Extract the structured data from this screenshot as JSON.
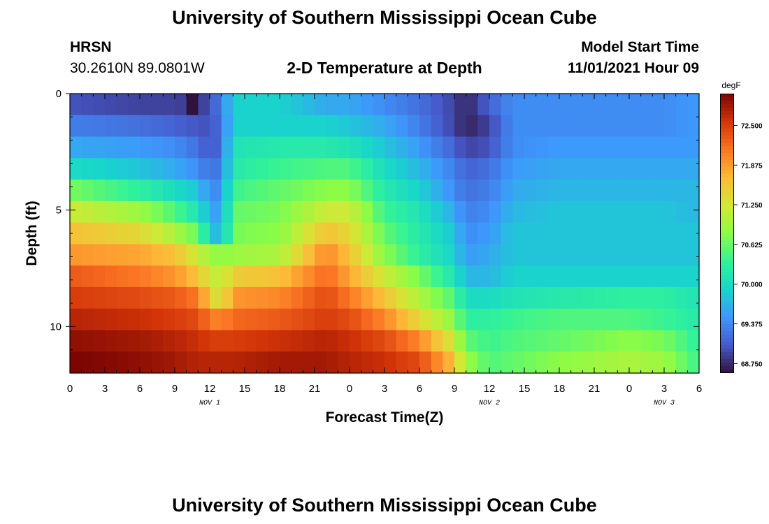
{
  "page": {
    "title": "University of Southern Mississippi Ocean Cube",
    "title_repeat": "University of Southern Mississippi Ocean Cube",
    "station": "HRSN",
    "coords": "30.2610N  89.0801W",
    "subtitle": "2-D Temperature at Depth",
    "model_start_label": "Model Start Time",
    "model_start_value": "11/01/2021 Hour 09"
  },
  "chart_data": {
    "type": "heatmap",
    "title": "2-D Temperature at Depth",
    "xlabel": "Forecast Time(Z)",
    "ylabel": "Depth (ft)",
    "x_hours": [
      0,
      3,
      6,
      9,
      12,
      15,
      18,
      21,
      24,
      27,
      30,
      33,
      36,
      39,
      42,
      45,
      48,
      51,
      54
    ],
    "x_tick_labels": [
      "0",
      "3",
      "6",
      "9",
      "12",
      "15",
      "18",
      "21",
      "0",
      "3",
      "6",
      "9",
      "12",
      "15",
      "18",
      "21",
      "0",
      "3",
      "6"
    ],
    "day_labels": [
      {
        "hour": 12,
        "label": "NOV 1"
      },
      {
        "hour": 36,
        "label": "NOV 2"
      },
      {
        "hour": 51,
        "label": "NOV 3"
      }
    ],
    "y_ticks": [
      0,
      5,
      10
    ],
    "ylim": [
      0,
      12
    ],
    "xlim": [
      0,
      54
    ],
    "colorbar": {
      "unit": "degF",
      "min": 68.6,
      "max": 73.0,
      "tick_values": [
        72.5,
        71.875,
        71.25,
        70.625,
        70.0,
        69.375,
        68.75
      ],
      "tick_labels": [
        "72.500",
        "71.875",
        "71.250",
        "70.625",
        "70.000",
        "69.375",
        "68.750"
      ]
    },
    "row_depths_ft": [
      0,
      1,
      2,
      3,
      4,
      5,
      6,
      7,
      8,
      9,
      10,
      11,
      12
    ],
    "key_hours": [
      0,
      6,
      9,
      11,
      12,
      13,
      14,
      18,
      22,
      24,
      27,
      30,
      33,
      34,
      36,
      38,
      42,
      48,
      51,
      54
    ],
    "grid_values_degF": [
      [
        69.0,
        68.9,
        68.9,
        68.8,
        69.0,
        69.3,
        69.9,
        69.9,
        69.6,
        69.6,
        69.4,
        69.2,
        68.9,
        68.7,
        69.1,
        69.4,
        69.4,
        69.4,
        69.4,
        69.5
      ],
      [
        69.3,
        69.2,
        69.1,
        69.0,
        69.0,
        69.2,
        69.9,
        69.9,
        69.9,
        69.8,
        69.6,
        69.3,
        68.9,
        68.7,
        68.9,
        69.4,
        69.4,
        69.4,
        69.4,
        69.5
      ],
      [
        69.6,
        69.5,
        69.4,
        69.2,
        69.0,
        69.2,
        70.1,
        70.2,
        70.2,
        70.1,
        69.8,
        69.5,
        69.1,
        68.9,
        69.0,
        69.4,
        69.5,
        69.5,
        69.5,
        69.5
      ],
      [
        70.0,
        69.8,
        69.6,
        69.4,
        69.2,
        69.3,
        70.2,
        70.4,
        70.5,
        70.5,
        70.0,
        69.7,
        69.3,
        69.1,
        69.2,
        69.5,
        69.6,
        69.6,
        69.6,
        69.6
      ],
      [
        70.7,
        70.3,
        70.0,
        69.8,
        69.4,
        69.4,
        70.4,
        70.6,
        70.8,
        70.8,
        70.2,
        69.9,
        69.4,
        69.2,
        69.3,
        69.6,
        69.7,
        69.7,
        69.7,
        69.7
      ],
      [
        71.2,
        70.9,
        70.5,
        70.1,
        69.6,
        69.5,
        70.6,
        70.7,
        71.2,
        71.2,
        70.4,
        70.1,
        69.6,
        69.3,
        69.4,
        69.7,
        69.8,
        69.8,
        69.8,
        69.7
      ],
      [
        71.6,
        71.4,
        71.0,
        70.6,
        69.9,
        69.6,
        70.7,
        70.8,
        71.6,
        71.4,
        70.6,
        70.2,
        69.8,
        69.4,
        69.5,
        69.8,
        69.8,
        69.8,
        69.8,
        69.8
      ],
      [
        71.9,
        71.8,
        71.6,
        71.2,
        70.9,
        70.8,
        70.9,
        71.0,
        72.0,
        71.6,
        70.8,
        70.3,
        69.9,
        69.5,
        69.6,
        69.8,
        69.8,
        69.8,
        69.8,
        69.8
      ],
      [
        72.3,
        72.1,
        71.9,
        71.6,
        71.2,
        71.1,
        71.5,
        71.6,
        72.2,
        71.8,
        71.2,
        70.7,
        70.1,
        69.7,
        69.7,
        69.9,
        69.9,
        69.9,
        69.9,
        69.9
      ],
      [
        72.5,
        72.4,
        72.3,
        72.1,
        71.5,
        71.2,
        71.9,
        72.0,
        72.4,
        72.1,
        71.6,
        71.0,
        70.5,
        70.0,
        70.0,
        70.1,
        70.2,
        70.3,
        70.3,
        70.1
      ],
      [
        72.7,
        72.6,
        72.5,
        72.4,
        72.1,
        72.0,
        72.2,
        72.3,
        72.5,
        72.4,
        72.0,
        71.4,
        70.8,
        70.3,
        70.3,
        70.4,
        70.5,
        70.5,
        70.4,
        70.2
      ],
      [
        72.9,
        72.8,
        72.7,
        72.6,
        72.5,
        72.5,
        72.5,
        72.6,
        72.7,
        72.6,
        72.4,
        72.0,
        71.2,
        70.6,
        70.4,
        70.5,
        70.6,
        70.8,
        70.7,
        70.3
      ],
      [
        73.0,
        72.9,
        72.8,
        72.7,
        72.7,
        72.7,
        72.7,
        72.8,
        72.8,
        72.7,
        72.6,
        72.4,
        71.6,
        70.9,
        70.5,
        70.6,
        70.8,
        71.0,
        70.9,
        70.4
      ]
    ],
    "overrides": [
      {
        "hour": 10,
        "depth_ft": 0,
        "value": 68.6
      }
    ]
  }
}
